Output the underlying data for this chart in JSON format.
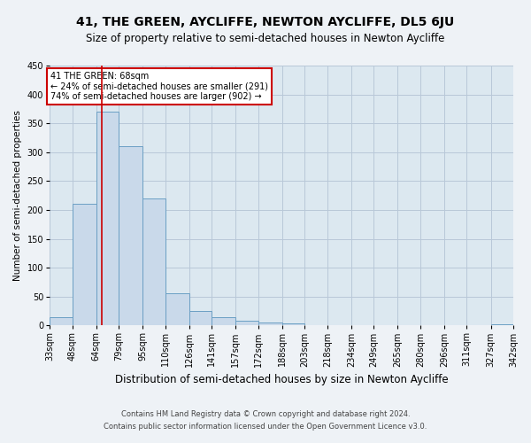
{
  "title": "41, THE GREEN, AYCLIFFE, NEWTON AYCLIFFE, DL5 6JU",
  "subtitle": "Size of property relative to semi-detached houses in Newton Aycliffe",
  "xlabel": "Distribution of semi-detached houses by size in Newton Aycliffe",
  "ylabel": "Number of semi-detached properties",
  "footer1": "Contains HM Land Registry data © Crown copyright and database right 2024.",
  "footer2": "Contains public sector information licensed under the Open Government Licence v3.0.",
  "bar_color": "#c9d9ea",
  "bar_edge_color": "#6b9fc4",
  "grid_color": "#b8c8d8",
  "background_color": "#dce8f0",
  "fig_background_color": "#eef2f6",
  "annotation_box_color": "#ffffff",
  "annotation_border_color": "#cc0000",
  "vline_color": "#cc0000",
  "bins": [
    33,
    48,
    64,
    79,
    95,
    110,
    126,
    141,
    157,
    172,
    188,
    203,
    218,
    234,
    249,
    265,
    280,
    296,
    311,
    327,
    342
  ],
  "counts": [
    15,
    210,
    370,
    310,
    220,
    55,
    25,
    15,
    8,
    5,
    3,
    1,
    1,
    0,
    0,
    0,
    0,
    0,
    0,
    2
  ],
  "property_size": 68,
  "annotation_title": "41 THE GREEN: 68sqm",
  "annotation_line1": "← 24% of semi-detached houses are smaller (291)",
  "annotation_line2": "74% of semi-detached houses are larger (902) →",
  "ylim": [
    0,
    450
  ],
  "yticks": [
    0,
    50,
    100,
    150,
    200,
    250,
    300,
    350,
    400,
    450
  ],
  "title_fontsize": 10,
  "subtitle_fontsize": 8.5,
  "xlabel_fontsize": 8.5,
  "ylabel_fontsize": 7.5,
  "tick_fontsize": 7,
  "footer_fontsize": 6
}
